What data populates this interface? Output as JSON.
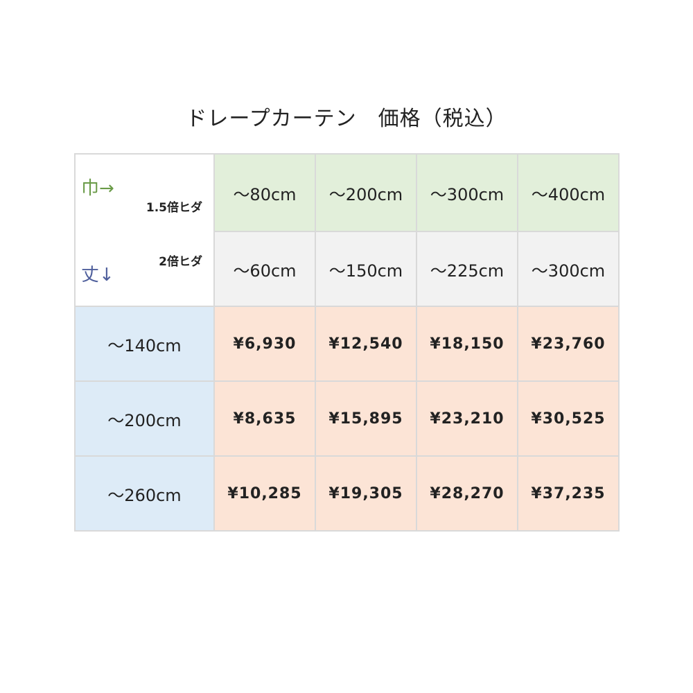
{
  "title": "ドレープカーテン　価格（税込）",
  "corner": {
    "width_label": "巾→",
    "height_label": "丈↓",
    "fold15": "1.5倍ヒダ",
    "fold2": "2倍ヒダ"
  },
  "widths_15": [
    "～80cm",
    "～200cm",
    "～300cm",
    "～400cm"
  ],
  "widths_2": [
    "～60cm",
    "～150cm",
    "～225cm",
    "～300cm"
  ],
  "rows": [
    {
      "height": "～140cm",
      "prices": [
        "¥6,930",
        "¥12,540",
        "¥18,150",
        "¥23,760"
      ]
    },
    {
      "height": "～200cm",
      "prices": [
        "¥8,635",
        "¥15,895",
        "¥23,210",
        "¥30,525"
      ]
    },
    {
      "height": "～260cm",
      "prices": [
        "¥10,285",
        "¥19,305",
        "¥28,270",
        "¥37,235"
      ]
    }
  ],
  "colors": {
    "width_header": "#e2efda",
    "width2_header": "#f2f2f2",
    "height_header": "#ddebf7",
    "price_cell": "#fce4d6",
    "width_label": "#6a9b48",
    "height_label": "#4f5f9c"
  }
}
